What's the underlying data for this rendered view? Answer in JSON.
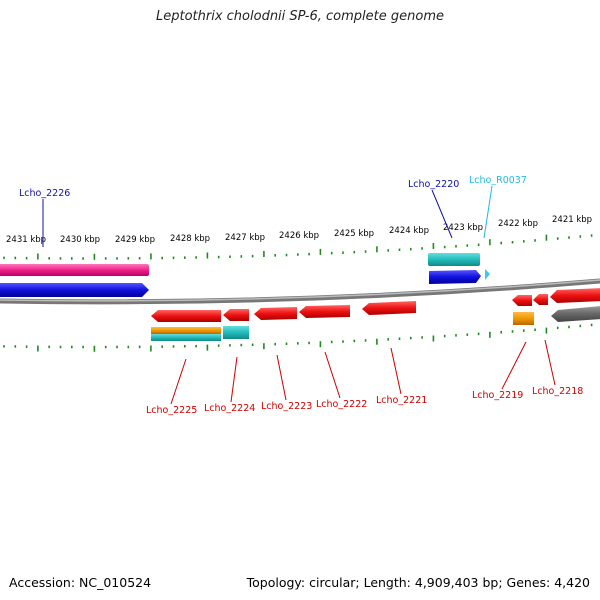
{
  "title": "Leptothrix cholodnii SP-6, complete genome",
  "footer": {
    "accession": "Accession: NC_010524",
    "summary": "Topology: circular; Length: 4,909,403 bp; Genes: 4,420"
  },
  "colors": {
    "cds": "#ee1111",
    "rna": "#22bbbb",
    "blue": "#1111dd",
    "pink": "#ee2288",
    "orange": "#ee9900",
    "gray": "#666666",
    "tick": "#228822",
    "label_top": "#1111aa",
    "label_rna": "#22bbdd",
    "label_bottom": "#cc0000"
  },
  "ruler": {
    "labels": [
      "2431 kbp",
      "2430 kbp",
      "2429 kbp",
      "2428 kbp",
      "2427 kbp",
      "2426 kbp",
      "2425 kbp",
      "2424 kbp",
      "2423 kbp",
      "2422 kbp",
      "2421 kbp"
    ]
  },
  "features": {
    "top": [
      {
        "label": "Lcho_2226",
        "color_key": "label_top"
      },
      {
        "label": "Lcho_2220",
        "color_key": "label_top"
      },
      {
        "label": "Lcho_R0037",
        "color_key": "label_rna"
      }
    ],
    "bottom": [
      {
        "label": "Lcho_2225"
      },
      {
        "label": "Lcho_2224"
      },
      {
        "label": "Lcho_2223"
      },
      {
        "label": "Lcho_2222"
      },
      {
        "label": "Lcho_2221"
      },
      {
        "label": "Lcho_2219"
      },
      {
        "label": "Lcho_2218"
      }
    ]
  }
}
